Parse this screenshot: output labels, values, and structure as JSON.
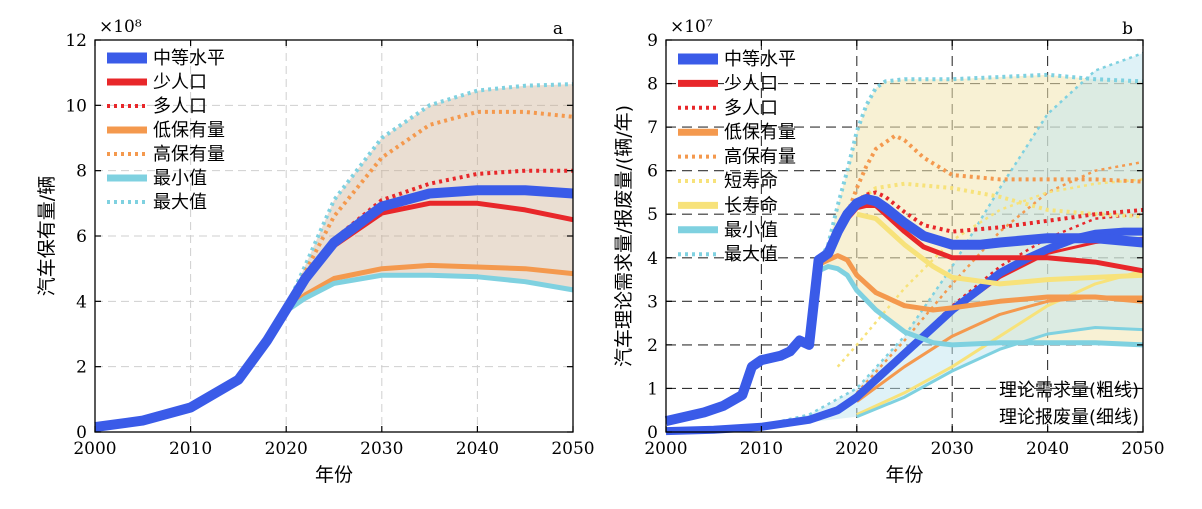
{
  "chart_data": [
    {
      "type": "line",
      "panel_label": "a",
      "exponent_label": "×10⁸",
      "xlabel": "年份",
      "ylabel": "汽车保有量/辆",
      "xlim": [
        2000,
        2050
      ],
      "ylim": [
        0,
        12
      ],
      "xticks": [
        "2000",
        "2010",
        "2020",
        "2030",
        "2040",
        "2050"
      ],
      "yticks": [
        "0",
        "2",
        "4",
        "6",
        "8",
        "10",
        "12"
      ],
      "grid": true,
      "legend_position": "top-left",
      "shaded_band": {
        "lower": "最小值",
        "upper": "最大值",
        "color": "#c8a98a"
      },
      "series": [
        {
          "name": "中等水平",
          "style": "solid-thick",
          "color": "#3a5be8",
          "x": [
            2000,
            2005,
            2010,
            2015,
            2018,
            2020,
            2022,
            2025,
            2030,
            2035,
            2040,
            2045,
            2050
          ],
          "y": [
            0.15,
            0.35,
            0.75,
            1.6,
            2.8,
            3.75,
            4.7,
            5.8,
            6.9,
            7.3,
            7.4,
            7.4,
            7.3
          ]
        },
        {
          "name": "少人口",
          "style": "solid",
          "color": "#e8272a",
          "x": [
            2022,
            2025,
            2030,
            2035,
            2040,
            2045,
            2050
          ],
          "y": [
            4.7,
            5.7,
            6.7,
            7.0,
            7.0,
            6.8,
            6.5
          ]
        },
        {
          "name": "多人口",
          "style": "dotted",
          "color": "#e8272a",
          "x": [
            2022,
            2025,
            2030,
            2035,
            2040,
            2045,
            2050
          ],
          "y": [
            4.8,
            5.9,
            7.1,
            7.6,
            7.9,
            8.0,
            8.0
          ]
        },
        {
          "name": "低保有量",
          "style": "solid",
          "color": "#f4994e",
          "x": [
            2020,
            2022,
            2025,
            2030,
            2035,
            2040,
            2045,
            2050
          ],
          "y": [
            3.75,
            4.2,
            4.7,
            5.0,
            5.1,
            5.05,
            5.0,
            4.85
          ]
        },
        {
          "name": "高保有量",
          "style": "dotted",
          "color": "#f4994e",
          "x": [
            2020,
            2022,
            2025,
            2030,
            2035,
            2040,
            2045,
            2050
          ],
          "y": [
            3.8,
            4.9,
            6.6,
            8.4,
            9.4,
            9.8,
            9.8,
            9.65
          ]
        },
        {
          "name": "最小值",
          "style": "solid",
          "color": "#7fd1e0",
          "x": [
            2020,
            2022,
            2025,
            2030,
            2035,
            2040,
            2045,
            2050
          ],
          "y": [
            3.7,
            4.1,
            4.55,
            4.8,
            4.8,
            4.75,
            4.6,
            4.35
          ]
        },
        {
          "name": "最大值",
          "style": "dotted",
          "color": "#7fd1e0",
          "x": [
            2020,
            2022,
            2025,
            2030,
            2035,
            2040,
            2045,
            2050
          ],
          "y": [
            3.8,
            5.1,
            7.1,
            9.0,
            10.0,
            10.45,
            10.6,
            10.65
          ]
        }
      ]
    },
    {
      "type": "line",
      "panel_label": "b",
      "exponent_label": "×10⁷",
      "xlabel": "年份",
      "ylabel": "汽车理论需求量/报废量/(辆/年)",
      "xlim": [
        2000,
        2050
      ],
      "ylim": [
        0,
        9
      ],
      "xticks": [
        "2000",
        "2010",
        "2020",
        "2030",
        "2040",
        "2050"
      ],
      "yticks": [
        "0",
        "1",
        "2",
        "3",
        "4",
        "5",
        "6",
        "7",
        "8",
        "9"
      ],
      "grid": true,
      "legend_position": "top-left",
      "annotations": [
        "理论需求量(粗线)",
        "理论报废量(细线)"
      ],
      "legend_entries": [
        {
          "name": "中等水平",
          "style": "solid-thick",
          "color": "#3a5be8"
        },
        {
          "name": "少人口",
          "style": "solid",
          "color": "#e8272a"
        },
        {
          "name": "多人口",
          "style": "dotted",
          "color": "#e8272a"
        },
        {
          "name": "低保有量",
          "style": "solid",
          "color": "#f4994e"
        },
        {
          "name": "高保有量",
          "style": "dotted",
          "color": "#f4994e"
        },
        {
          "name": "短寿命",
          "style": "dotted",
          "color": "#f7e27a"
        },
        {
          "name": "长寿命",
          "style": "solid",
          "color": "#f7e27a"
        },
        {
          "name": "最小值",
          "style": "solid",
          "color": "#7fd1e0"
        },
        {
          "name": "最大值",
          "style": "dotted",
          "color": "#7fd1e0"
        }
      ],
      "demand_series": [
        {
          "name": "中等水平",
          "style": "solid-thick",
          "color": "#3a5be8",
          "x": [
            2000,
            2002,
            2004,
            2006,
            2008,
            2009,
            2010,
            2012,
            2013,
            2014,
            2015,
            2016,
            2017,
            2018,
            2019,
            2020,
            2021,
            2022,
            2023,
            2025,
            2027,
            2030,
            2033,
            2035,
            2040,
            2045,
            2050
          ],
          "y": [
            0.25,
            0.35,
            0.45,
            0.6,
            0.85,
            1.5,
            1.65,
            1.75,
            1.85,
            2.1,
            2.0,
            3.95,
            4.1,
            4.6,
            5.0,
            5.25,
            5.35,
            5.3,
            5.15,
            4.8,
            4.5,
            4.3,
            4.3,
            4.35,
            4.45,
            4.45,
            4.35
          ]
        },
        {
          "name": "少人口",
          "style": "solid",
          "color": "#e8272a",
          "x": [
            2019,
            2020,
            2021,
            2022,
            2023,
            2025,
            2027,
            2030,
            2035,
            2040,
            2045,
            2050
          ],
          "y": [
            4.9,
            5.15,
            5.2,
            5.2,
            5.0,
            4.6,
            4.25,
            4.0,
            4.0,
            4.0,
            3.9,
            3.7
          ]
        },
        {
          "name": "多人口",
          "style": "dotted",
          "color": "#e8272a",
          "x": [
            2019,
            2020,
            2021,
            2022,
            2023,
            2025,
            2027,
            2030,
            2035,
            2040,
            2045,
            2050
          ],
          "y": [
            5.0,
            5.3,
            5.45,
            5.5,
            5.4,
            5.05,
            4.75,
            4.6,
            4.7,
            4.85,
            5.0,
            5.1
          ]
        },
        {
          "name": "低保有量",
          "style": "solid",
          "color": "#f4994e",
          "x": [
            2016,
            2017,
            2018,
            2019,
            2020,
            2022,
            2025,
            2028,
            2030,
            2035,
            2040,
            2045,
            2050
          ],
          "y": [
            3.85,
            3.95,
            4.05,
            3.95,
            3.6,
            3.2,
            2.9,
            2.8,
            2.85,
            3.0,
            3.1,
            3.1,
            3.0
          ]
        },
        {
          "name": "高保有量",
          "style": "dotted",
          "color": "#f4994e",
          "x": [
            2019,
            2020,
            2021,
            2022,
            2024,
            2025,
            2027,
            2030,
            2035,
            2040,
            2045,
            2050
          ],
          "y": [
            5.0,
            5.6,
            6.1,
            6.5,
            6.8,
            6.7,
            6.3,
            5.9,
            5.8,
            5.8,
            5.8,
            5.75
          ]
        },
        {
          "name": "短寿命",
          "style": "dotted",
          "color": "#f7e27a",
          "x": [
            2020,
            2022,
            2025,
            2030,
            2035,
            2040,
            2045,
            2050
          ],
          "y": [
            5.3,
            5.6,
            5.7,
            5.6,
            5.4,
            5.1,
            5.0,
            4.95
          ]
        },
        {
          "name": "长寿命",
          "style": "solid",
          "color": "#f7e27a",
          "x": [
            2020,
            2022,
            2025,
            2028,
            2030,
            2035,
            2040,
            2045,
            2050
          ],
          "y": [
            5.0,
            4.9,
            4.3,
            3.8,
            3.55,
            3.4,
            3.5,
            3.55,
            3.6
          ]
        },
        {
          "name": "最小值",
          "style": "solid",
          "color": "#7fd1e0",
          "x": [
            2016,
            2017,
            2018,
            2019,
            2020,
            2022,
            2025,
            2028,
            2030,
            2035,
            2040,
            2045,
            2050
          ],
          "y": [
            3.7,
            3.8,
            3.75,
            3.6,
            3.25,
            2.8,
            2.3,
            2.05,
            2.0,
            2.05,
            2.05,
            2.05,
            2.0
          ]
        },
        {
          "name": "最大值",
          "style": "dotted",
          "color": "#7fd1e0",
          "x": [
            2015,
            2016,
            2017,
            2018,
            2019,
            2020,
            2021,
            2022,
            2023,
            2025,
            2027,
            2030,
            2035,
            2040,
            2045,
            2050
          ],
          "y": [
            2.1,
            3.9,
            4.3,
            5.2,
            6.0,
            6.9,
            7.5,
            7.9,
            8.05,
            8.1,
            8.1,
            8.1,
            8.15,
            8.2,
            8.1,
            8.05
          ]
        }
      ],
      "scrap_series": [
        {
          "name": "中等水平",
          "style": "solid-thick",
          "color": "#3a5be8",
          "x": [
            2000,
            2005,
            2010,
            2015,
            2018,
            2020,
            2022,
            2025,
            2028,
            2030,
            2033,
            2035,
            2038,
            2040,
            2043,
            2045,
            2048,
            2050
          ],
          "y": [
            0.02,
            0.05,
            0.12,
            0.28,
            0.5,
            0.8,
            1.2,
            1.8,
            2.4,
            2.8,
            3.3,
            3.65,
            4.0,
            4.2,
            4.45,
            4.55,
            4.6,
            4.6
          ]
        },
        {
          "name": "少人口",
          "style": "solid",
          "color": "#e8272a",
          "x": [
            2020,
            2025,
            2030,
            2035,
            2040,
            2045,
            2050
          ],
          "y": [
            0.8,
            1.8,
            2.75,
            3.55,
            4.1,
            4.35,
            4.45
          ]
        },
        {
          "name": "多人口",
          "style": "dotted",
          "color": "#e8272a",
          "x": [
            2020,
            2025,
            2030,
            2035,
            2040,
            2045,
            2050
          ],
          "y": [
            0.8,
            1.85,
            2.9,
            3.8,
            4.45,
            4.9,
            5.0
          ]
        },
        {
          "name": "低保有量",
          "style": "solid",
          "color": "#f4994e",
          "x": [
            2020,
            2025,
            2030,
            2035,
            2040,
            2045,
            2050
          ],
          "y": [
            0.7,
            1.5,
            2.2,
            2.7,
            3.0,
            3.1,
            3.1
          ]
        },
        {
          "name": "高保有量",
          "style": "dotted",
          "color": "#f4994e",
          "x": [
            2020,
            2025,
            2030,
            2035,
            2040,
            2045,
            2050
          ],
          "y": [
            0.9,
            2.1,
            3.4,
            4.6,
            5.5,
            6.0,
            6.2
          ]
        },
        {
          "name": "短寿命",
          "style": "dotted",
          "color": "#f7e27a",
          "x": [
            2018,
            2020,
            2025,
            2030,
            2035,
            2040,
            2045,
            2050
          ],
          "y": [
            1.5,
            2.0,
            3.3,
            4.4,
            5.1,
            5.5,
            5.7,
            5.8
          ]
        },
        {
          "name": "长寿命",
          "style": "solid",
          "color": "#f7e27a",
          "x": [
            2020,
            2025,
            2030,
            2035,
            2040,
            2045,
            2050
          ],
          "y": [
            0.4,
            0.9,
            1.5,
            2.2,
            2.9,
            3.4,
            3.7
          ]
        },
        {
          "name": "最小值",
          "style": "solid",
          "color": "#7fd1e0",
          "x": [
            2020,
            2025,
            2030,
            2035,
            2040,
            2045,
            2050
          ],
          "y": [
            0.35,
            0.8,
            1.4,
            1.9,
            2.25,
            2.4,
            2.35
          ]
        },
        {
          "name": "最大值",
          "style": "dotted",
          "color": "#7fd1e0",
          "x": [
            2010,
            2015,
            2020,
            2025,
            2030,
            2035,
            2040,
            2045,
            2050
          ],
          "y": [
            0.15,
            0.4,
            1.0,
            2.2,
            3.8,
            5.6,
            7.3,
            8.3,
            8.7
          ]
        }
      ]
    }
  ]
}
